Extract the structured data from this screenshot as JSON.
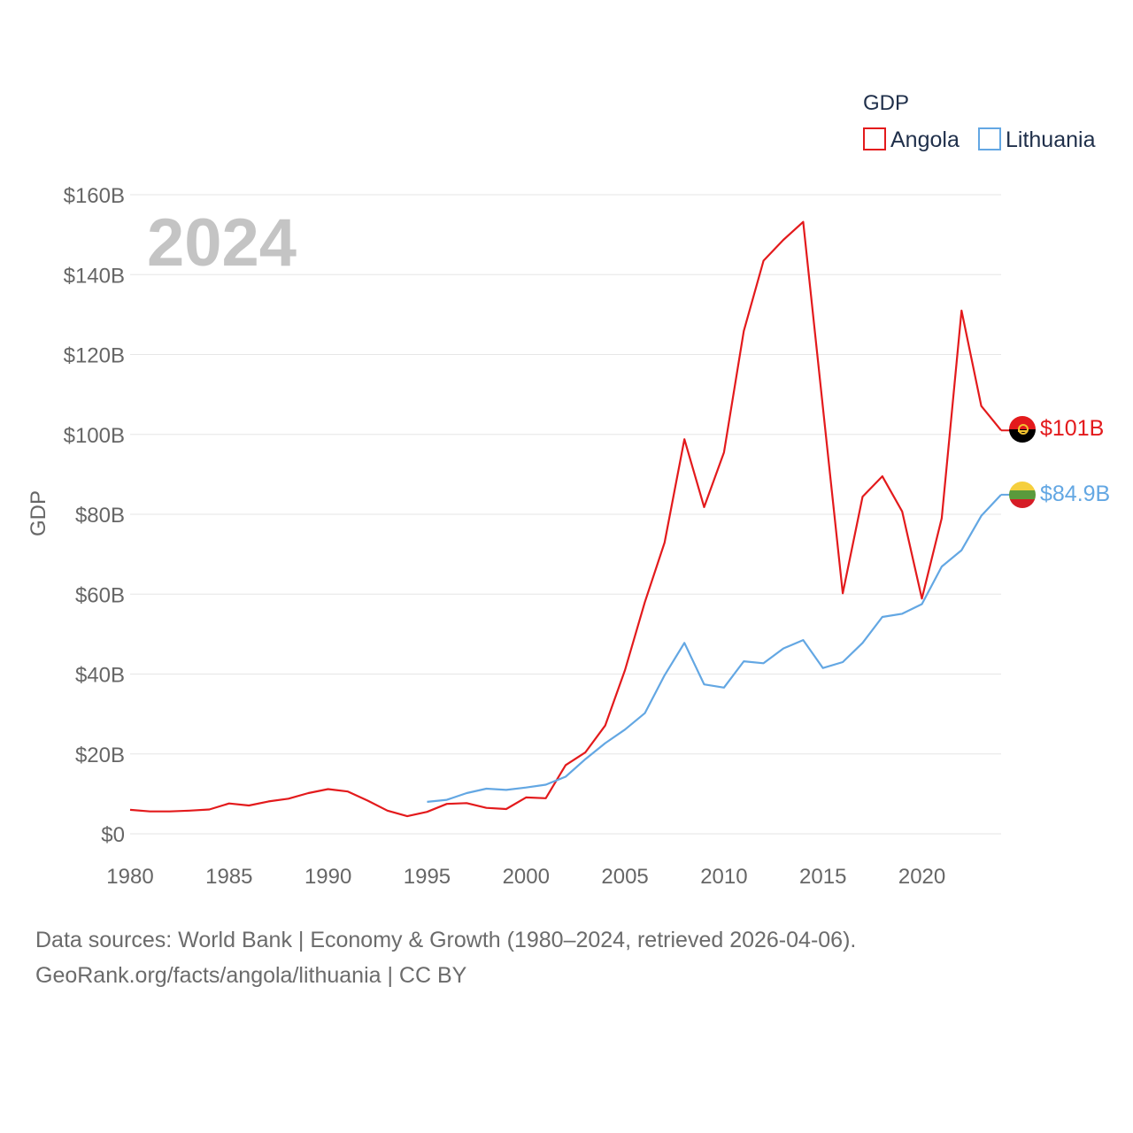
{
  "chart_data": {
    "type": "line",
    "title": "",
    "year_watermark": "2024",
    "xlabel": "",
    "ylabel": "GDP",
    "xlim": [
      1980,
      2024
    ],
    "ylim": [
      0,
      160
    ],
    "x_ticks": [
      1980,
      1985,
      1990,
      1995,
      2000,
      2005,
      2010,
      2015,
      2020
    ],
    "x_tick_labels": [
      "1980",
      "1985",
      "1990",
      "1995",
      "2000",
      "2005",
      "2010",
      "2015",
      "2020"
    ],
    "y_ticks": [
      0,
      20,
      40,
      60,
      80,
      100,
      120,
      140,
      160
    ],
    "y_tick_labels": [
      "$0",
      "$20B",
      "$40B",
      "$60B",
      "$80B",
      "$100B",
      "$120B",
      "$140B",
      "$160B"
    ],
    "units": "billions USD",
    "grid": true,
    "legend": {
      "title": "GDP",
      "position": "top-right",
      "entries": [
        "Angola",
        "Lithuania"
      ]
    },
    "series": [
      {
        "name": "Angola",
        "color": "#e31a1c",
        "end_label": "$101B",
        "x": [
          1980,
          1981,
          1982,
          1983,
          1984,
          1985,
          1986,
          1987,
          1988,
          1989,
          1990,
          1991,
          1992,
          1993,
          1994,
          1995,
          1996,
          1997,
          1998,
          1999,
          2000,
          2001,
          2002,
          2003,
          2004,
          2005,
          2006,
          2007,
          2008,
          2009,
          2010,
          2011,
          2012,
          2013,
          2014,
          2015,
          2016,
          2017,
          2018,
          2019,
          2020,
          2021,
          2022,
          2023,
          2024
        ],
        "values": [
          6.0,
          5.6,
          5.6,
          5.8,
          6.1,
          7.6,
          7.1,
          8.1,
          8.8,
          10.2,
          11.2,
          10.6,
          8.3,
          5.8,
          4.4,
          5.5,
          7.5,
          7.7,
          6.5,
          6.2,
          9.1,
          8.9,
          17.2,
          20.4,
          27.1,
          41.0,
          58.0,
          72.9,
          98.8,
          81.8,
          95.5,
          125.9,
          143.5,
          148.7,
          153.2,
          106.7,
          60.2,
          84.4,
          89.5,
          80.7,
          58.9,
          79.0,
          131.0,
          107.1,
          101.0
        ]
      },
      {
        "name": "Lithuania",
        "color": "#63a7e3",
        "end_label": "$84.9B",
        "x": [
          1995,
          1996,
          1997,
          1998,
          1999,
          2000,
          2001,
          2002,
          2003,
          2004,
          2005,
          2006,
          2007,
          2008,
          2009,
          2010,
          2011,
          2012,
          2013,
          2014,
          2015,
          2016,
          2017,
          2018,
          2019,
          2020,
          2021,
          2022,
          2023,
          2024
        ],
        "values": [
          8.0,
          8.5,
          10.2,
          11.3,
          11.0,
          11.6,
          12.3,
          14.3,
          18.7,
          22.7,
          26.1,
          30.2,
          39.7,
          47.8,
          37.4,
          36.6,
          43.2,
          42.7,
          46.4,
          48.5,
          41.5,
          43.0,
          47.8,
          54.3,
          55.1,
          57.5,
          66.9,
          71.0,
          79.6,
          84.9
        ]
      }
    ]
  },
  "footer": {
    "source_line": "Data sources: World Bank | Economy & Growth (1980–2024, retrieved 2026-04-06).",
    "url_line": "GeoRank.org/facts/angola/lithuania | CC BY"
  }
}
